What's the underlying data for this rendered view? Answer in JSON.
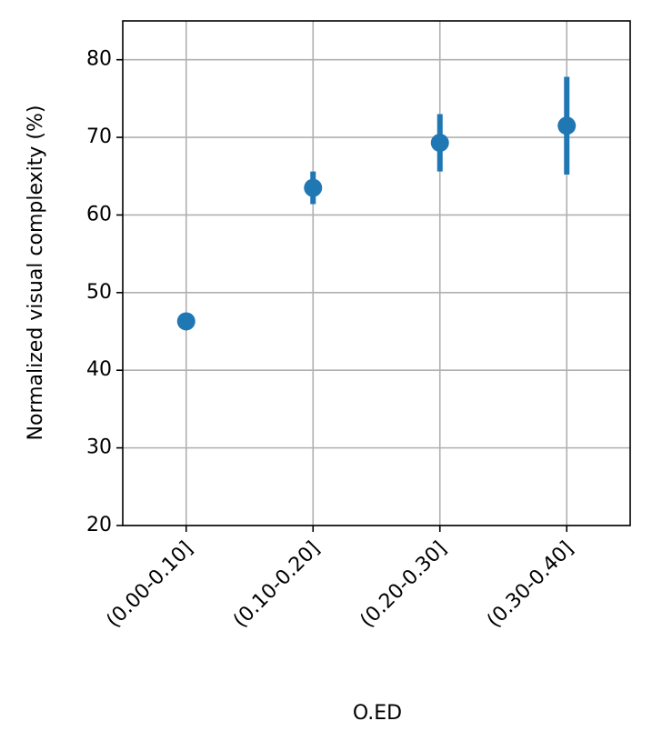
{
  "chart_data": {
    "type": "errorbar",
    "x_label": "O.ED",
    "y_label": "Normalized visual complexity (%)",
    "categories": [
      "(0.00-0.10]",
      "(0.10-0.20]",
      "(0.20-0.30]",
      "(0.30-0.40]"
    ],
    "values": [
      46.3,
      63.5,
      69.3,
      71.5
    ],
    "errors": [
      0,
      2.1,
      3.7,
      6.3
    ],
    "color": "#1f77b4",
    "ylim": [
      20,
      85
    ],
    "yticks": [
      20,
      30,
      40,
      50,
      60,
      70,
      80
    ],
    "grid": true
  }
}
